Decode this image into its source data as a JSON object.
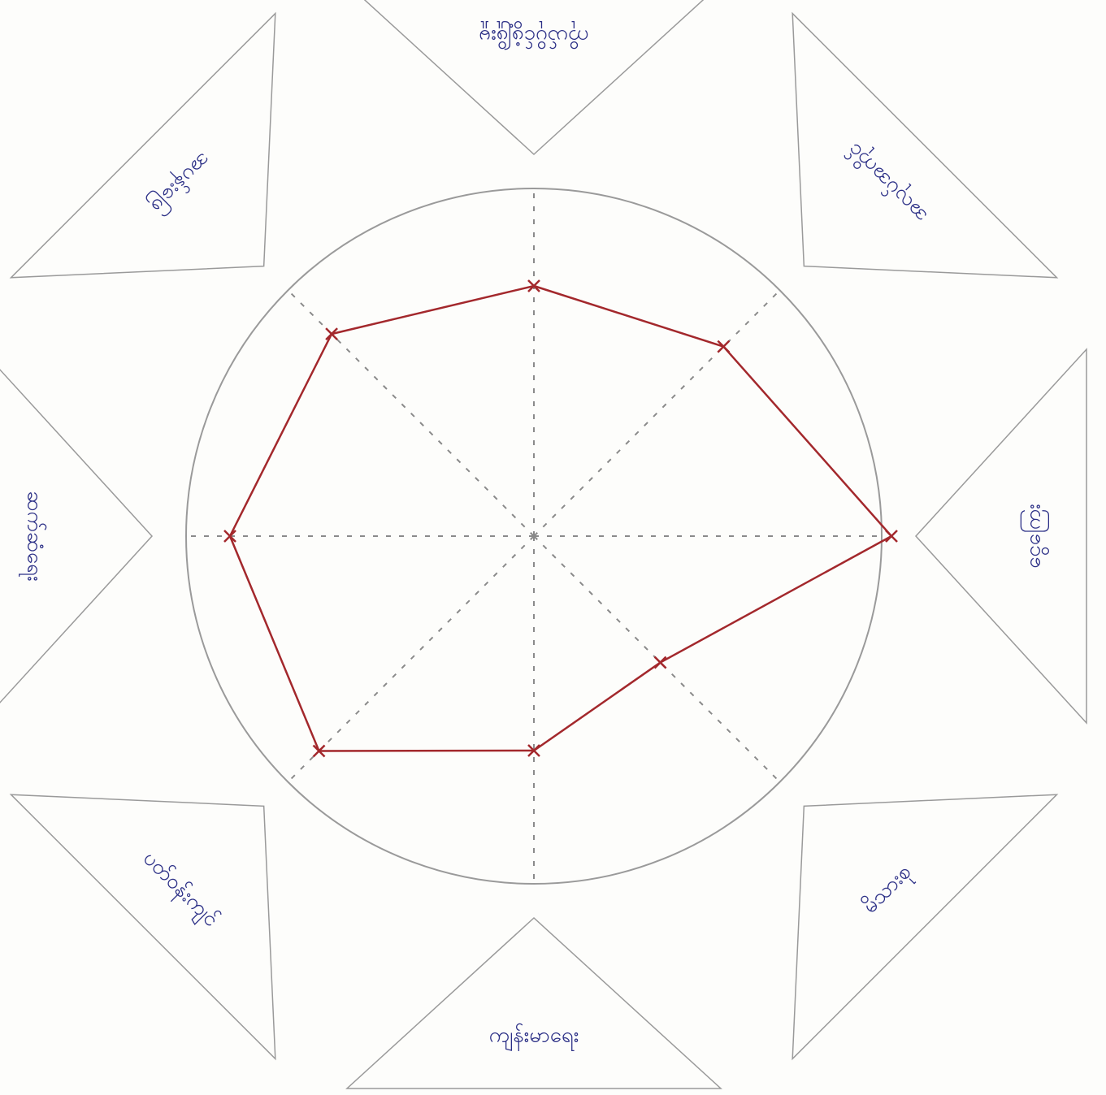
{
  "chart_data": {
    "type": "radar",
    "categories": [
      "ကိုယ်ပိုင်ဖွံ့ဖြိုးမှု",
      "အလုပ်အကိုင်",
      "ငွေကြေး",
      "မိသားစု",
      "ကျန်းမာရေး",
      "ပတ်ဝန်းကျင်",
      "ဆက်ဆံရေး",
      "အပန်းဖြေ"
    ],
    "values": [
      7,
      7.5,
      10,
      5,
      6,
      8.5,
      8.5,
      8
    ],
    "color": "#a3282c",
    "ylim": [
      0,
      10
    ]
  }
}
